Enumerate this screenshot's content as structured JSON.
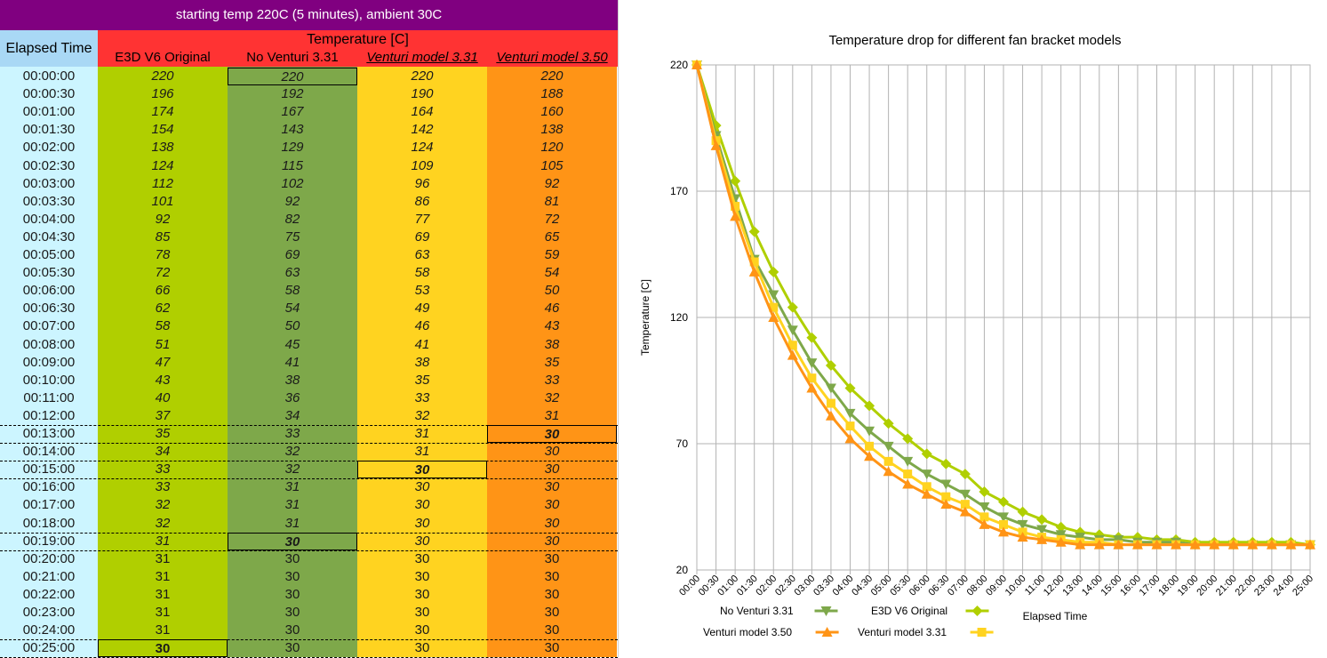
{
  "sheet": {
    "title": "starting temp 220C (5 minutes), ambient 30C",
    "elapsed_header": "Elapsed Time",
    "temp_header": "Temperature [C]",
    "columns": [
      "E3D V6 Original",
      "No Venturi 3.31",
      "Venturi model 3.31",
      "Venturi model 3.50"
    ],
    "colors": {
      "title_bg": "#800080",
      "elapsed_bg": "#ccf5ff",
      "header_bg": "#ff3333",
      "col_e3d": "#b0cf00",
      "col_noventuri": "#7ea84a",
      "col_venturi331": "#ffd320",
      "col_venturi350": "#ff9416"
    },
    "rows": [
      {
        "time": "00:00:00",
        "v": [
          "220",
          "220",
          "220",
          "220"
        ]
      },
      {
        "time": "00:00:30",
        "v": [
          "196",
          "192",
          "190",
          "188"
        ]
      },
      {
        "time": "00:01:00",
        "v": [
          "174",
          "167",
          "164",
          "160"
        ]
      },
      {
        "time": "00:01:30",
        "v": [
          "154",
          "143",
          "142",
          "138"
        ]
      },
      {
        "time": "00:02:00",
        "v": [
          "138",
          "129",
          "124",
          "120"
        ]
      },
      {
        "time": "00:02:30",
        "v": [
          "124",
          "115",
          "109",
          "105"
        ]
      },
      {
        "time": "00:03:00",
        "v": [
          "112",
          "102",
          "96",
          "92"
        ]
      },
      {
        "time": "00:03:30",
        "v": [
          "101",
          "92",
          "86",
          "81"
        ]
      },
      {
        "time": "00:04:00",
        "v": [
          "92",
          "82",
          "77",
          "72"
        ]
      },
      {
        "time": "00:04:30",
        "v": [
          "85",
          "75",
          "69",
          "65"
        ]
      },
      {
        "time": "00:05:00",
        "v": [
          "78",
          "69",
          "63",
          "59"
        ]
      },
      {
        "time": "00:05:30",
        "v": [
          "72",
          "63",
          "58",
          "54"
        ]
      },
      {
        "time": "00:06:00",
        "v": [
          "66",
          "58",
          "53",
          "50"
        ]
      },
      {
        "time": "00:06:30",
        "v": [
          "62",
          "54",
          "49",
          "46"
        ]
      },
      {
        "time": "00:07:00",
        "v": [
          "58",
          "50",
          "46",
          "43"
        ]
      },
      {
        "time": "00:08:00",
        "v": [
          "51",
          "45",
          "41",
          "38"
        ]
      },
      {
        "time": "00:09:00",
        "v": [
          "47",
          "41",
          "38",
          "35"
        ]
      },
      {
        "time": "00:10:00",
        "v": [
          "43",
          "38",
          "35",
          "33"
        ]
      },
      {
        "time": "00:11:00",
        "v": [
          "40",
          "36",
          "33",
          "32"
        ]
      },
      {
        "time": "00:12:00",
        "v": [
          "37",
          "34",
          "32",
          "31"
        ]
      },
      {
        "time": "00:13:00",
        "v": [
          "35",
          "33",
          "31",
          "30"
        ]
      },
      {
        "time": "00:14:00",
        "v": [
          "34",
          "32",
          "31",
          "30"
        ]
      },
      {
        "time": "00:15:00",
        "v": [
          "33",
          "32",
          "30",
          "30"
        ]
      },
      {
        "time": "00:16:00",
        "v": [
          "33",
          "31",
          "30",
          "30"
        ]
      },
      {
        "time": "00:17:00",
        "v": [
          "32",
          "31",
          "30",
          "30"
        ]
      },
      {
        "time": "00:18:00",
        "v": [
          "32",
          "31",
          "30",
          "30"
        ]
      },
      {
        "time": "00:19:00",
        "v": [
          "31",
          "30",
          "30",
          "30"
        ]
      },
      {
        "time": "00:20:00",
        "v": [
          "31",
          "30",
          "30",
          "30"
        ]
      },
      {
        "time": "00:21:00",
        "v": [
          "31",
          "30",
          "30",
          "30"
        ]
      },
      {
        "time": "00:22:00",
        "v": [
          "31",
          "30",
          "30",
          "30"
        ]
      },
      {
        "time": "00:23:00",
        "v": [
          "31",
          "30",
          "30",
          "30"
        ]
      },
      {
        "time": "00:24:00",
        "v": [
          "31",
          "30",
          "30",
          "30"
        ]
      },
      {
        "time": "00:25:00",
        "v": [
          "30",
          "30",
          "30",
          "30"
        ]
      }
    ],
    "selected_cell": {
      "row": 0,
      "col": 1
    }
  },
  "chart_data": {
    "type": "line",
    "title": "Temperature drop for different fan bracket models",
    "xlabel": "Elapsed Time",
    "ylabel": "Temperature [C]",
    "ylim": [
      20,
      220
    ],
    "yticks": [
      20,
      70,
      120,
      170,
      220
    ],
    "grid": true,
    "legend_position": "bottom",
    "categories": [
      "00:00",
      "00:30",
      "01:00",
      "01:30",
      "02:00",
      "02:30",
      "03:00",
      "03:30",
      "04:00",
      "04:30",
      "05:00",
      "05:30",
      "06:00",
      "06:30",
      "07:00",
      "08:00",
      "09:00",
      "10:00",
      "11:00",
      "12:00",
      "13:00",
      "14:00",
      "15:00",
      "16:00",
      "17:00",
      "18:00",
      "19:00",
      "20:00",
      "21:00",
      "22:00",
      "23:00",
      "24:00",
      "25:00"
    ],
    "series": [
      {
        "name": "No Venturi 3.31",
        "color": "#7ea84a",
        "marker": "triangle-down",
        "values": [
          220,
          192,
          167,
          143,
          129,
          115,
          102,
          92,
          82,
          75,
          69,
          63,
          58,
          54,
          50,
          45,
          41,
          38,
          36,
          34,
          33,
          32,
          32,
          31,
          31,
          31,
          30,
          30,
          30,
          30,
          30,
          30,
          30
        ]
      },
      {
        "name": "E3D V6 Original",
        "color": "#b0cf00",
        "marker": "diamond",
        "values": [
          220,
          196,
          174,
          154,
          138,
          124,
          112,
          101,
          92,
          85,
          78,
          72,
          66,
          62,
          58,
          51,
          47,
          43,
          40,
          37,
          35,
          34,
          33,
          33,
          32,
          32,
          31,
          31,
          31,
          31,
          31,
          31,
          30
        ]
      },
      {
        "name": "Venturi model 3.50",
        "color": "#ff9416",
        "marker": "triangle-up",
        "values": [
          220,
          188,
          160,
          138,
          120,
          105,
          92,
          81,
          72,
          65,
          59,
          54,
          50,
          46,
          43,
          38,
          35,
          33,
          32,
          31,
          30,
          30,
          30,
          30,
          30,
          30,
          30,
          30,
          30,
          30,
          30,
          30,
          30
        ]
      },
      {
        "name": "Venturi model 3.31",
        "color": "#ffd320",
        "marker": "square",
        "values": [
          220,
          190,
          164,
          142,
          124,
          109,
          96,
          86,
          77,
          69,
          63,
          58,
          53,
          49,
          46,
          41,
          38,
          35,
          33,
          32,
          31,
          31,
          30,
          30,
          30,
          30,
          30,
          30,
          30,
          30,
          30,
          30,
          30
        ]
      }
    ]
  }
}
